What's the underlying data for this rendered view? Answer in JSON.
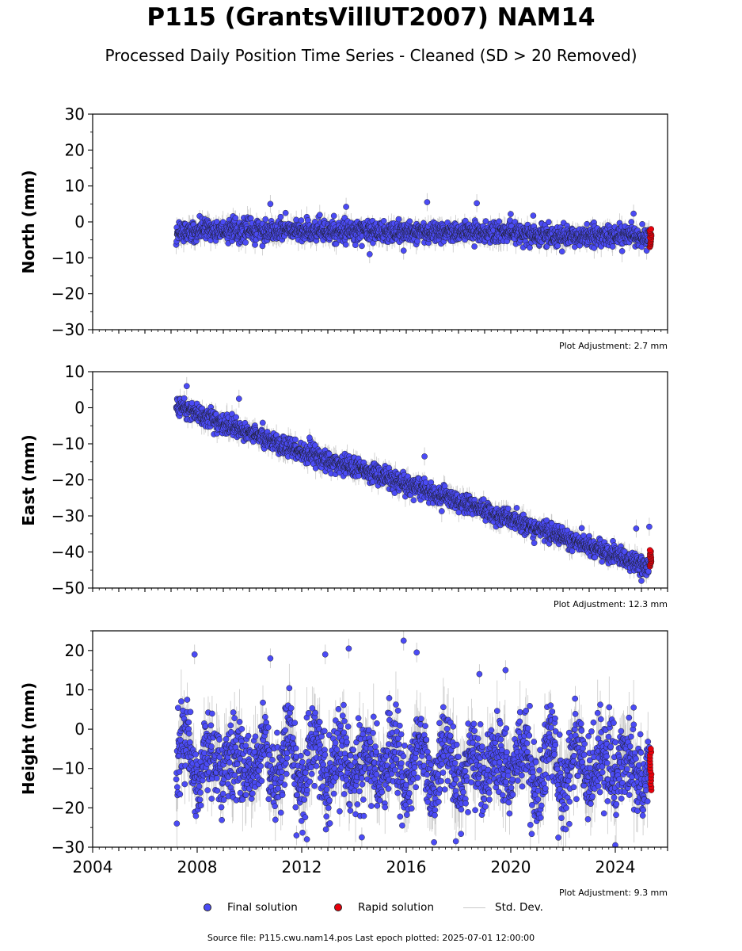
{
  "title": "P115 (GrantsVillUT2007) NAM14",
  "subtitle": "Processed Daily Position Time Series - Cleaned (SD > 20 Removed)",
  "footer": "Source file: P115.cwu.nam14.pos  Last epoch plotted: 2025-07-01 12:00:00",
  "colors": {
    "final": "#4b4bf5",
    "rapid": "#e8000b",
    "stddev": "#c9c9c9",
    "marker_edge": "#1a1a1a"
  },
  "legend": {
    "final_label": "Final solution",
    "rapid_label": "Rapid solution",
    "stddev_label": "Std. Dev."
  },
  "chart_data": [
    {
      "type": "scatter",
      "name": "north",
      "ylabel": "North (mm)",
      "ylim": [
        -30,
        30
      ],
      "yticks": [
        -30,
        -20,
        -10,
        0,
        10,
        20,
        30
      ],
      "xlim": [
        2004,
        2026
      ],
      "adjustment": "Plot Adjustment: 2.7 mm",
      "final_series": {
        "x_start": 2007.2,
        "x_end": 2025.3,
        "trend": [
          [
            2007.2,
            -2.5
          ],
          [
            2010.0,
            -2.3
          ],
          [
            2014.0,
            -2.6
          ],
          [
            2018.0,
            -2.8
          ],
          [
            2020.0,
            -3.3
          ],
          [
            2022.0,
            -4.0
          ],
          [
            2025.3,
            -4.0
          ]
        ],
        "scatter_sd": 1.4,
        "outliers": [
          [
            2010.8,
            5.0
          ],
          [
            2016.8,
            5.5
          ],
          [
            2018.7,
            5.2
          ],
          [
            2014.6,
            -9.0
          ],
          [
            2015.9,
            -8.0
          ],
          [
            2025.2,
            -8.0
          ],
          [
            2013.7,
            4.2
          ],
          [
            2024.7,
            2.3
          ]
        ]
      },
      "rapid_series": {
        "x": 2025.35,
        "y_range": [
          -7.0,
          -2.0
        ]
      }
    },
    {
      "type": "scatter",
      "name": "east",
      "ylabel": "East (mm)",
      "ylim": [
        -50,
        10
      ],
      "yticks": [
        -50,
        -40,
        -30,
        -20,
        -10,
        0,
        10
      ],
      "xlim": [
        2004,
        2026
      ],
      "adjustment": "Plot Adjustment: 12.3 mm",
      "final_series": {
        "x_start": 2007.2,
        "x_end": 2025.3,
        "trend": [
          [
            2007.2,
            0.5
          ],
          [
            2008.0,
            -1.5
          ],
          [
            2010.0,
            -7.0
          ],
          [
            2012.0,
            -12.5
          ],
          [
            2014.0,
            -16.5
          ],
          [
            2016.0,
            -21.0
          ],
          [
            2018.0,
            -26.0
          ],
          [
            2020.0,
            -31.0
          ],
          [
            2022.0,
            -36.0
          ],
          [
            2024.0,
            -41.0
          ],
          [
            2025.3,
            -44.0
          ]
        ],
        "scatter_sd": 1.3,
        "outliers": [
          [
            2007.6,
            6.0
          ],
          [
            2009.6,
            2.5
          ],
          [
            2025.3,
            -33.0
          ],
          [
            2024.8,
            -33.5
          ],
          [
            2016.7,
            -13.5
          ],
          [
            2025.0,
            -48.0
          ],
          [
            2012.3,
            -8.3
          ]
        ]
      },
      "rapid_series": {
        "x": 2025.35,
        "y_range": [
          -44.0,
          -39.5
        ]
      }
    },
    {
      "type": "scatter",
      "name": "height",
      "ylabel": "Height (mm)",
      "ylim": [
        -30,
        25
      ],
      "yticks": [
        -30,
        -20,
        -10,
        0,
        10,
        20
      ],
      "xlim": [
        2004,
        2026
      ],
      "xticks": [
        2004,
        2008,
        2012,
        2016,
        2020,
        2024
      ],
      "adjustment": "Plot Adjustment: 9.3 mm",
      "final_series": {
        "x_start": 2007.2,
        "x_end": 2025.3,
        "trend": [
          [
            2007.2,
            -8.0
          ],
          [
            2025.3,
            -9.5
          ]
        ],
        "seasonal_amplitude": 6.5,
        "scatter_sd": 5.0,
        "outliers": [
          [
            2007.9,
            19.0
          ],
          [
            2010.8,
            18.0
          ],
          [
            2012.9,
            19.0
          ],
          [
            2013.8,
            20.5
          ],
          [
            2015.9,
            22.5
          ],
          [
            2016.4,
            19.5
          ],
          [
            2018.8,
            14.0
          ],
          [
            2019.8,
            15.0
          ],
          [
            2014.3,
            -27.5
          ],
          [
            2017.9,
            -28.5
          ],
          [
            2012.2,
            -28.0
          ],
          [
            2024.0,
            -29.5
          ],
          [
            2011.8,
            -27.0
          ]
        ]
      },
      "rapid_series": {
        "x": 2025.35,
        "y_range": [
          -15.5,
          -5.0
        ]
      }
    }
  ]
}
